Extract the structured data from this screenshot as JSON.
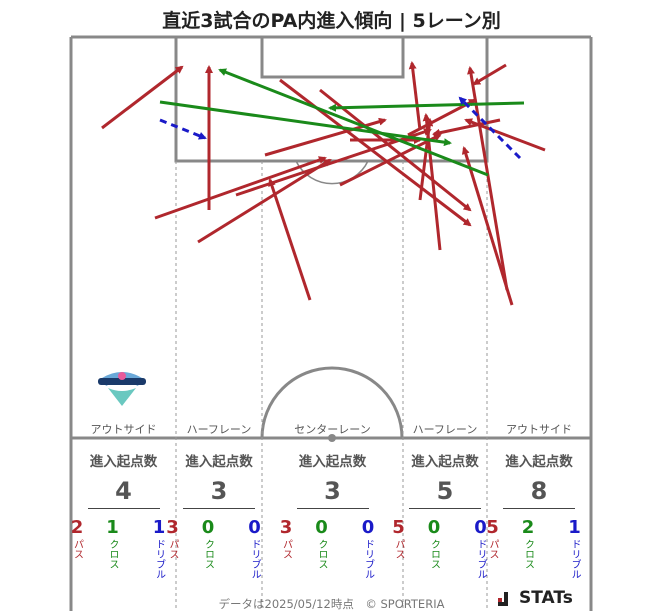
{
  "title": "直近3試合のPA内進入傾向 | 5レーン別",
  "lanes": [
    {
      "name": "アウトサイド",
      "header": "進入起点数",
      "total": "4",
      "pass": "2",
      "cross": "1",
      "dribble": "1"
    },
    {
      "name": "ハーフレーン",
      "header": "進入起点数",
      "total": "3",
      "pass": "3",
      "cross": "0",
      "dribble": "0"
    },
    {
      "name": "センターレーン",
      "header": "進入起点数",
      "total": "3",
      "pass": "3",
      "cross": "0",
      "dribble": "0"
    },
    {
      "name": "ハーフレーン",
      "header": "進入起点数",
      "total": "5",
      "pass": "5",
      "cross": "0",
      "dribble": "0"
    },
    {
      "name": "アウトサイド",
      "header": "進入起点数",
      "total": "8",
      "pass": "5",
      "cross": "2",
      "dribble": "1"
    }
  ],
  "type_labels": {
    "pass": "パス",
    "cross": "クロス",
    "dribble": "ドリブル"
  },
  "colors": {
    "pass": "#b0272d",
    "cross": "#1a8a1a",
    "dribble": "#1a1ac8",
    "lines": "#888888"
  },
  "footer": "データは2025/05/12時点　© SPORTERIA",
  "brand": "STATs"
}
